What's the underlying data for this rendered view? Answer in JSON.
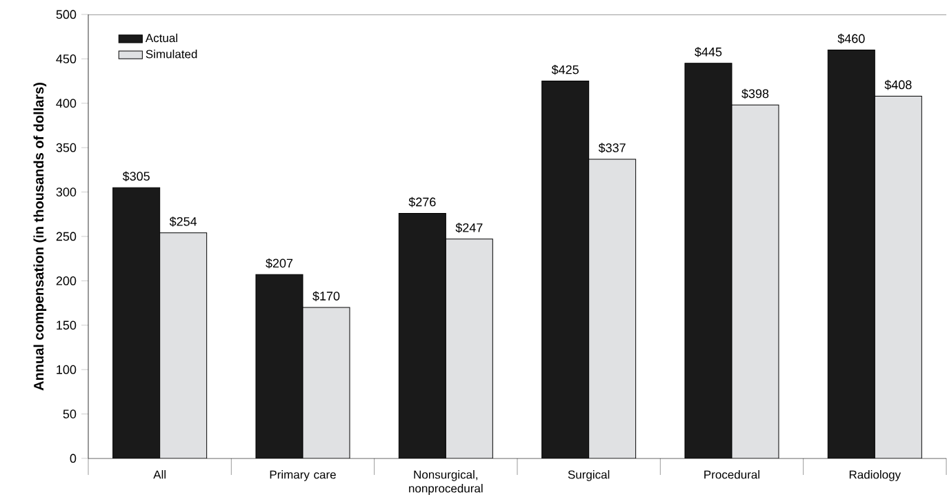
{
  "chart_data": {
    "type": "bar",
    "ylabel": "**Annual compensation (in thousands of dollars)**",
    "categories": [
      "All",
      "Primary care",
      "Nonsurgical, nonprocedural",
      "Surgical",
      "Procedural",
      "Radiology"
    ],
    "series": [
      {
        "name": "Actual",
        "color": "#1a1a1a",
        "values": [
          305,
          207,
          276,
          425,
          445,
          460
        ],
        "value_labels": [
          "$305",
          "$207",
          "$276",
          "$425",
          "$445",
          "$460"
        ]
      },
      {
        "name": "Simulated",
        "color": "#e0e1e3",
        "values": [
          254,
          170,
          247,
          337,
          398,
          408
        ],
        "value_labels": [
          "$254",
          "$170",
          "$247",
          "$337",
          "$398",
          "$408"
        ]
      }
    ],
    "ylim": [
      0,
      500
    ],
    "yticks": [
      0,
      50,
      100,
      150,
      200,
      250,
      300,
      350,
      400,
      450,
      500
    ],
    "grid": false,
    "legend": "top left"
  }
}
